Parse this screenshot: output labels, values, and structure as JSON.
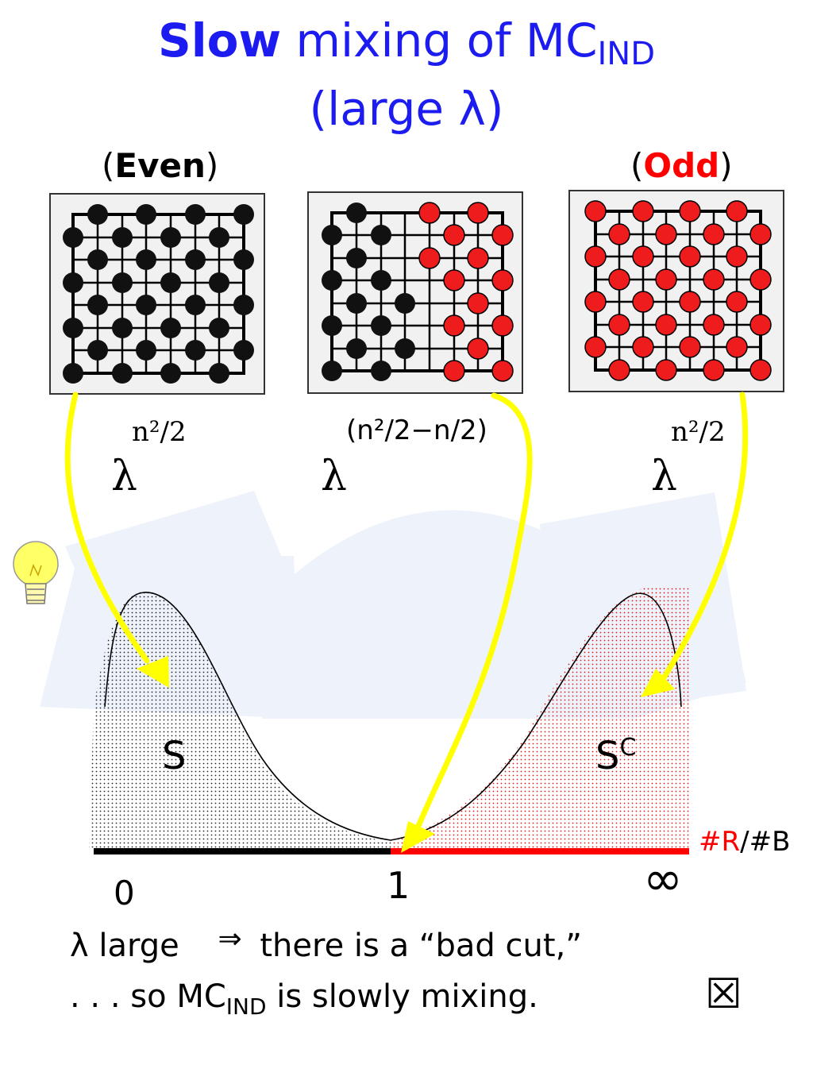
{
  "title": {
    "line1_bold": "Slow",
    "line1_rest": " mixing of MC",
    "line1_sub": "IND",
    "line2": "(large λ)"
  },
  "panels": {
    "even": {
      "label_open": "(",
      "label_word": "Even",
      "label_close": ")",
      "exponent": "n²/2"
    },
    "mixed": {
      "exponent": "(n²/2−n/2)"
    },
    "odd": {
      "label_open": "(",
      "label_word": "Odd",
      "label_close": ")",
      "exponent": "n²/2"
    }
  },
  "lambda": "λ",
  "curve": {
    "left_region": "S",
    "right_region_base": "S",
    "right_region_sup": "C",
    "axis_label_red": "#R",
    "axis_label_rest": "/#B",
    "tick_0": "0",
    "tick_1": "1",
    "tick_inf": "∞"
  },
  "conclusion": {
    "line1_a": "λ large",
    "implies": "⇒",
    "line1_b": "there is a “bad cut,”",
    "line2_a": ". . . so  MC",
    "line2_sub": "IND",
    "line2_b": "  is slowly mixing.",
    "qed": "☒"
  },
  "colors": {
    "title_blue": "#1c1cf0",
    "red": "#ff0000",
    "yellow_arrow": "#ffff00",
    "background_shape": "#eef3fb"
  }
}
